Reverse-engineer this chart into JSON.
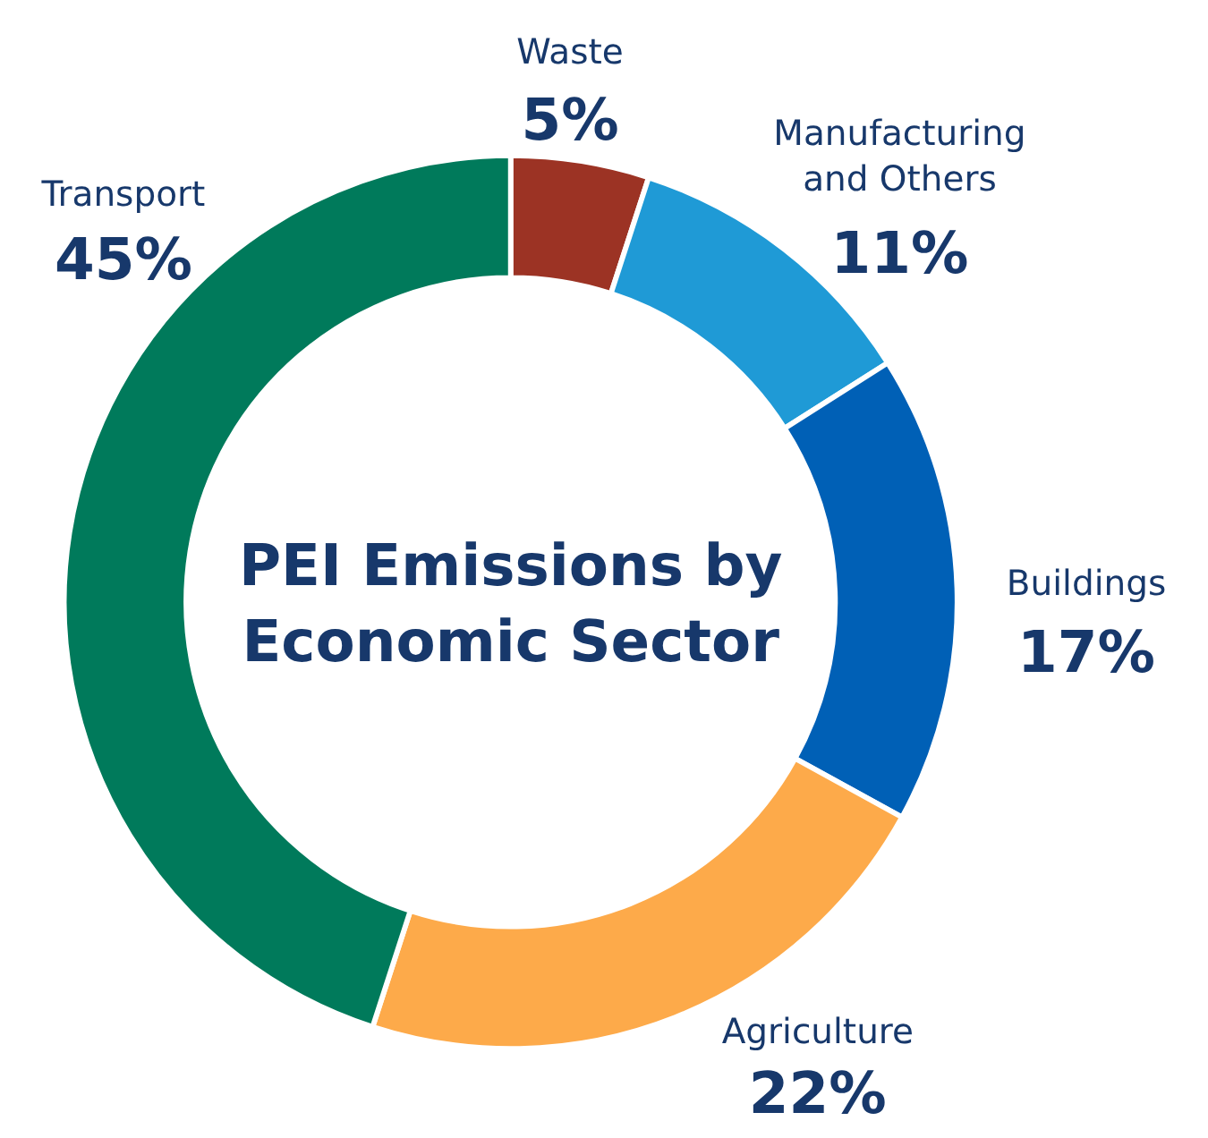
{
  "chart_data": {
    "type": "donut",
    "title": "PEI Emissions by Economic Sector",
    "categories": [
      "Waste",
      "Manufacturing and Others",
      "Buildings",
      "Agriculture",
      "Transport"
    ],
    "values": [
      5,
      11,
      17,
      22,
      45
    ],
    "value_labels": [
      "5%",
      "11%",
      "17%",
      "22%",
      "45%"
    ],
    "colors": [
      "#9c3324",
      "#1f9ad6",
      "#0060b6",
      "#fdaa4a",
      "#007a5b"
    ]
  }
}
